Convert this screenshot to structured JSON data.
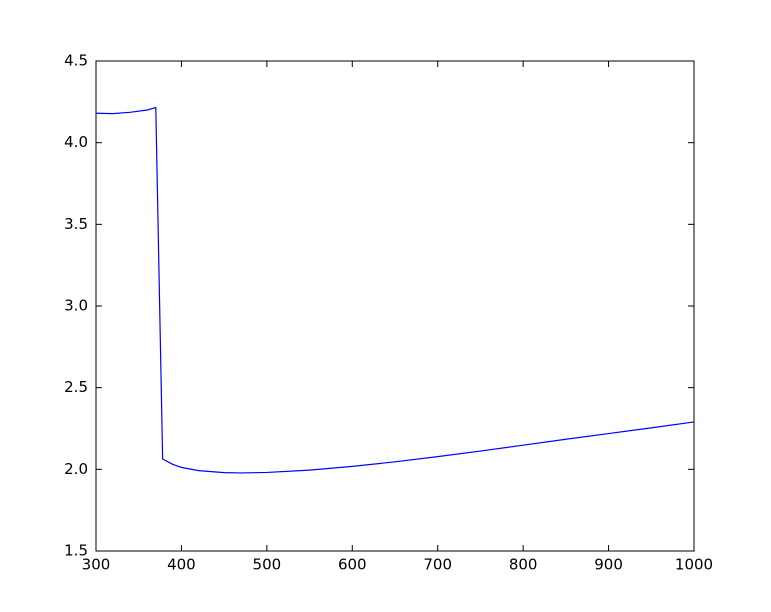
{
  "chart_data": {
    "type": "line",
    "x": [
      300,
      320,
      340,
      360,
      370,
      378,
      390,
      400,
      420,
      450,
      470,
      500,
      550,
      600,
      650,
      700,
      750,
      800,
      850,
      900,
      950,
      1000
    ],
    "values": [
      4.18,
      4.178,
      4.186,
      4.2,
      4.215,
      2.063,
      2.03,
      2.012,
      1.992,
      1.98,
      1.978,
      1.981,
      1.995,
      2.018,
      2.046,
      2.078,
      2.112,
      2.148,
      2.184,
      2.219,
      2.254,
      2.29
    ],
    "color": "#0000ff",
    "xlim": [
      300,
      1000
    ],
    "ylim": [
      1.5,
      4.5
    ],
    "xticks": [
      300,
      400,
      500,
      600,
      700,
      800,
      900,
      1000
    ],
    "yticks": [
      1.5,
      {
        "value": 2,
        "label": "2.0"
      },
      2.5,
      {
        "value": 3,
        "label": "3.0"
      },
      3.5,
      {
        "value": 4,
        "label": "4.0"
      },
      4.5
    ]
  }
}
